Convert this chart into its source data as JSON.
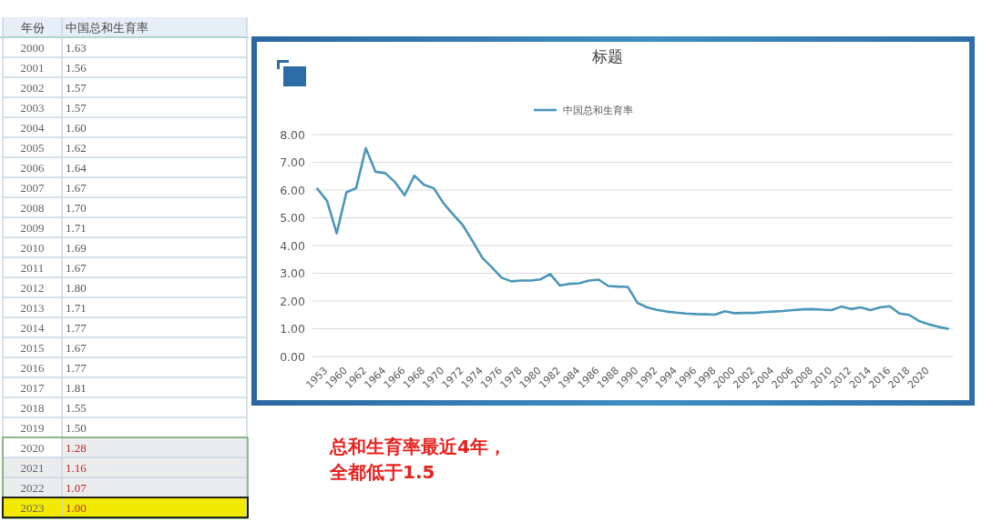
{
  "chart_data": [
    {
      "type": "heatmap",
      "ylabel": "年份",
      "categories": [
        "中国总和生育率"
      ],
      "y_categories": [
        "2000",
        "2001",
        "2002",
        "2003",
        "2004",
        "2005",
        "2006",
        "2007",
        "2008",
        "2009",
        "2010",
        "2011",
        "2012",
        "2013",
        "2014",
        "2015",
        "2016",
        "2017",
        "2018",
        "2019",
        "2020",
        "2021",
        "2022",
        "2023"
      ],
      "cells": [
        [
          1.63
        ],
        [
          1.56
        ],
        [
          1.57
        ],
        [
          1.57
        ],
        [
          1.6
        ],
        [
          1.62
        ],
        [
          1.64
        ],
        [
          1.67
        ],
        [
          1.7
        ],
        [
          1.71
        ],
        [
          1.69
        ],
        [
          1.67
        ],
        [
          1.8
        ],
        [
          1.71
        ],
        [
          1.77
        ],
        [
          1.67
        ],
        [
          1.77
        ],
        [
          1.81
        ],
        [
          1.55
        ],
        [
          1.5
        ],
        [
          1.28
        ],
        [
          1.16
        ],
        [
          1.07
        ],
        [
          1.0
        ]
      ],
      "cell_labels": [
        [
          "1.63"
        ],
        [
          "1.56"
        ],
        [
          "1.57"
        ],
        [
          "1.57"
        ],
        [
          "1.60"
        ],
        [
          "1.62"
        ],
        [
          "1.64"
        ],
        [
          "1.67"
        ],
        [
          "1.70"
        ],
        [
          "1.71"
        ],
        [
          "1.69"
        ],
        [
          "1.67"
        ],
        [
          "1.80"
        ],
        [
          "1.71"
        ],
        [
          "1.77"
        ],
        [
          "1.67"
        ],
        [
          "1.77"
        ],
        [
          "1.81"
        ],
        [
          "1.55"
        ],
        [
          "1.50"
        ],
        [
          "1.28"
        ],
        [
          "1.16"
        ],
        [
          "1.07"
        ],
        [
          "1.00"
        ]
      ],
      "colors": [
        "#555555",
        "#555555",
        "#555555",
        "#555555",
        "#555555",
        "#555555",
        "#555555",
        "#555555",
        "#555555",
        "#555555",
        "#555555",
        "#555555",
        "#555555",
        "#555555",
        "#555555",
        "#555555",
        "#555555",
        "#555555",
        "#555555",
        "#555555",
        "#c0282d",
        "#c0282d",
        "#c0282d",
        "#c0282d"
      ]
    },
    {
      "type": "line",
      "title": "标题",
      "categories": [
        "1953",
        null,
        "1960",
        null,
        "1962",
        null,
        "1964",
        null,
        "1966",
        null,
        "1968",
        null,
        "1970",
        null,
        "1972",
        null,
        "1974",
        null,
        "1976",
        null,
        "1978",
        null,
        "1980",
        null,
        "1982",
        null,
        "1984",
        null,
        "1986",
        null,
        "1988",
        null,
        "1990",
        null,
        "1992",
        null,
        "1994",
        null,
        "1996",
        null,
        "1998",
        null,
        "2000",
        null,
        "2002",
        null,
        "2004",
        null,
        "2006",
        null,
        "2008",
        null,
        "2010",
        null,
        "2012",
        null,
        "2014",
        null,
        "2016",
        null,
        "2018",
        null,
        "2020",
        null,
        null,
        null
      ],
      "series": [
        {
          "name": "中国总和生育率",
          "color": "#4b97b9",
          "values": [
            6.05,
            5.61,
            4.44,
            5.92,
            6.07,
            7.51,
            6.66,
            6.61,
            6.29,
            5.81,
            6.52,
            6.19,
            6.07,
            5.53,
            5.12,
            4.73,
            4.16,
            3.56,
            3.21,
            2.84,
            2.71,
            2.74,
            2.74,
            2.78,
            2.97,
            2.56,
            2.62,
            2.64,
            2.74,
            2.77,
            2.54,
            2.52,
            2.51,
            1.93,
            1.77,
            1.68,
            1.62,
            1.58,
            1.55,
            1.53,
            1.52,
            1.51,
            1.63,
            1.56,
            1.57,
            1.57,
            1.6,
            1.62,
            1.64,
            1.67,
            1.7,
            1.71,
            1.69,
            1.67,
            1.8,
            1.71,
            1.77,
            1.67,
            1.77,
            1.81,
            1.55,
            1.5,
            1.28,
            1.16,
            1.07,
            1.0
          ]
        }
      ],
      "ylim": [
        0,
        8
      ],
      "yticks": [
        {
          "value": 0,
          "label": "0.00"
        },
        {
          "value": 1,
          "label": "1.00"
        },
        {
          "value": 2,
          "label": "2.00"
        },
        {
          "value": 3,
          "label": "3.00"
        },
        {
          "value": 4,
          "label": "4.00"
        },
        {
          "value": 5,
          "label": "5.00"
        },
        {
          "value": 6,
          "label": "6.00"
        },
        {
          "value": 7,
          "label": "7.00"
        },
        {
          "value": 8,
          "label": "8.00"
        }
      ],
      "grid": "y",
      "legend": "top",
      "annotations": [
        "总和生育率最近4年，全都低于1.5"
      ]
    }
  ]
}
